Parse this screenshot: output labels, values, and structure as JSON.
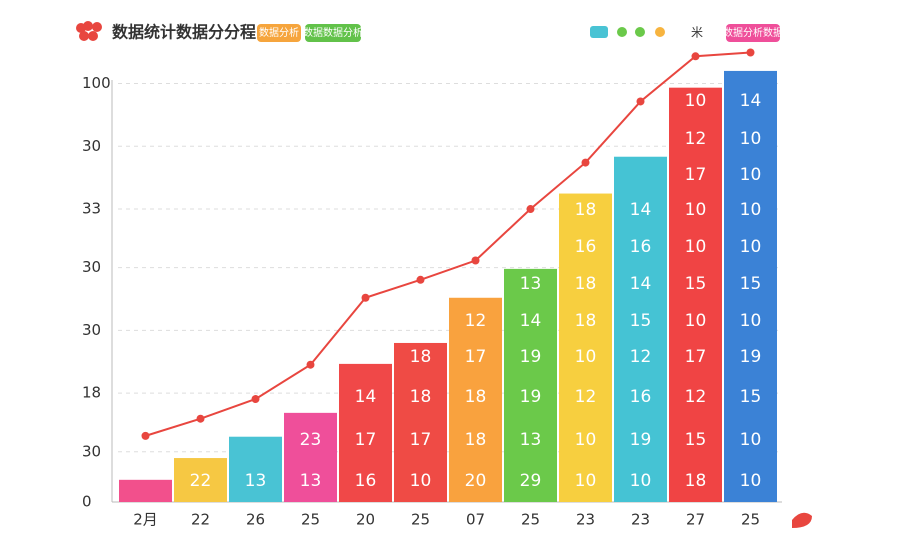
{
  "header": {
    "title": "数据统计数据分分程",
    "badges": [
      "数据分析",
      "数据数据分析"
    ],
    "right_badge": "数据分析数据",
    "legend_mark": "米"
  },
  "chart_data": {
    "type": "bar",
    "categories": [
      "2月",
      "22",
      "26",
      "25",
      "20",
      "25",
      "07",
      "25",
      "23",
      "23",
      "27",
      "25"
    ],
    "values": [
      5.3,
      10.5,
      15.6,
      21.3,
      33,
      38,
      48.8,
      55.7,
      73.7,
      82.5,
      99,
      103
    ],
    "colors": [
      "#f2508c",
      "#f6c843",
      "#49c3d4",
      "#ef4f9a",
      "#f04848",
      "#ef4b45",
      "#f9a23e",
      "#6bc94a",
      "#f7cf3f",
      "#45c3d4",
      "#f04444",
      "#3b82d6"
    ],
    "bar_labels": [
      [],
      [
        "22"
      ],
      [
        "13"
      ],
      [
        "13",
        "23"
      ],
      [
        "16",
        "17",
        "14"
      ],
      [
        "10",
        "17",
        "18",
        "18"
      ],
      [
        "20",
        "18",
        "18",
        "17",
        "12"
      ],
      [
        "29",
        "13",
        "19",
        "19",
        "14",
        "13"
      ],
      [
        "10",
        "10",
        "12",
        "10",
        "18",
        "18",
        "16",
        "18"
      ],
      [
        "10",
        "19",
        "16",
        "12",
        "15",
        "14",
        "16",
        "14"
      ],
      [
        "18",
        "15",
        "12",
        "17",
        "10",
        "15",
        "10",
        "10",
        "17",
        "12",
        "10"
      ],
      [
        "10",
        "10",
        "15",
        "19",
        "10",
        "15",
        "10",
        "10",
        "10",
        "10",
        "14"
      ]
    ],
    "line": {
      "color": "#e8463f",
      "values": [
        15.8,
        19.9,
        24.6,
        32.8,
        48.8,
        53.1,
        57.7,
        70,
        81.1,
        95.7,
        106.5,
        107.4
      ]
    },
    "ylim": [
      0,
      108
    ],
    "yticks": [
      0,
      {
        "value": 12,
        "label": "30"
      },
      {
        "value": 26,
        "label": "18"
      },
      {
        "value": 41,
        "label": "30"
      },
      {
        "value": 56,
        "label": "30"
      },
      {
        "value": 70,
        "label": "33"
      },
      {
        "value": 85,
        "label": "30"
      },
      100
    ],
    "grid": true
  }
}
